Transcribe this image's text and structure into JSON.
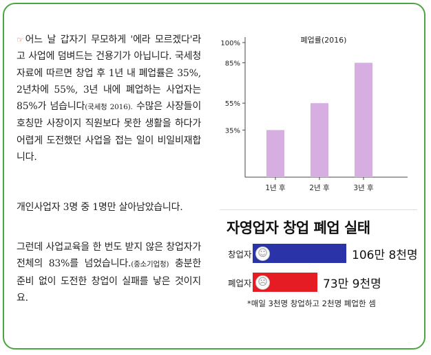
{
  "article": {
    "pointer_icon": "hand-pointer-icon",
    "para1_text": "어느 날 갑자기 무모하게 '에라 모르겠다'라고 사업에 덤벼드는 건용기가 아닙니다. 국세청 자료에 따르면 창업 후 1년 내 폐업률은 35%, 2년차에 55%, 3년 내에 폐업하는 사업자는 85%가 넘습니다",
    "para1_cite": "(국세청 2016).",
    "para1_tail": " 수많은 사장들이 호칭만 사장이지 직원보다 못한 생활을 하다가 어렵게 도전했던 사업을 접는 일이 비일비재합니다.",
    "para2": "개인사업자 3명 중 1명만 살아남았습니다.",
    "para3_head": "그런데 사업교육을 한 번도 받지 않은 창업자가 전체의 83%를 넘었습니다.",
    "para3_cite": "(중소기업청)",
    "para3_tail": " 충분한 준비 없이 도전한 창업이 실패를 낳은 것이지요."
  },
  "chart_data": {
    "type": "bar",
    "title": "폐업률(2016)",
    "categories": [
      "1년 후",
      "2년 후",
      "3년 후"
    ],
    "values": [
      35,
      55,
      85
    ],
    "y_ticks": [
      "35%",
      "55%",
      "85%",
      "100%"
    ],
    "y_tick_values": [
      35,
      55,
      85,
      100
    ],
    "ylim": [
      0,
      100
    ],
    "bar_color": "#d6aee2",
    "axis_color": "#444444"
  },
  "panel": {
    "title": "자영업자 창업  폐업 실태",
    "rows": [
      {
        "label": "창업자",
        "value": "106만 8천명",
        "count": 1068000,
        "color": "#2a33a8",
        "face": "happy-face-icon",
        "face_char": "☺"
      },
      {
        "label": "폐업자",
        "value": "73만 9천명",
        "count": 739000,
        "color": "#e51c23",
        "face": "sad-face-icon",
        "face_char": "☹"
      }
    ],
    "note": "*매일 3천명 창업하고 2천명 폐업한 셈"
  },
  "colors": {
    "frame": "#49a63c"
  }
}
